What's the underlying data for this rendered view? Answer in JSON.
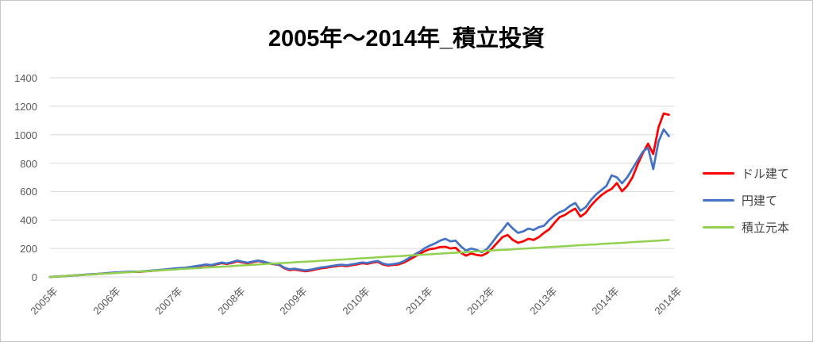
{
  "title": "2005年～2014年_積立投資",
  "legend": {
    "items": [
      {
        "label": "ドル建て",
        "color": "#ff0000"
      },
      {
        "label": "円建て",
        "color": "#4472c4"
      },
      {
        "label": "積立元本",
        "color": "#92d050"
      }
    ]
  },
  "colors": {
    "gridline": "#d9d9d9",
    "axis_text": "#595959",
    "legend_text": "#404040",
    "background": "#ffffff",
    "frame_border": "#c6c6c6"
  },
  "chart_data": {
    "type": "line",
    "title": "2005年～2014年_積立投資",
    "xlabel": "",
    "ylabel": "",
    "grid": "horizontal",
    "legend_position": "right",
    "x_axis": {
      "tick_labels": [
        "2005年",
        "2006年",
        "2007年",
        "2008年",
        "2009年",
        "2010年",
        "2011年",
        "2012年",
        "2013年",
        "2014年",
        "2014年"
      ],
      "months_per_tick": 12,
      "total_months": 120
    },
    "y_axis": {
      "min": 0,
      "max": 1400,
      "tick_interval": 200,
      "ticks": [
        1400,
        1200,
        1000,
        800,
        600,
        400,
        200,
        0
      ]
    },
    "series": [
      {
        "name": "ドル建て",
        "color": "#ff0000",
        "stroke_width": 2.75,
        "values": [
          0,
          2,
          4,
          6,
          9,
          11,
          14,
          16,
          18,
          20,
          23,
          26,
          29,
          31,
          33,
          34,
          36,
          35,
          38,
          41,
          44,
          47,
          50,
          53,
          57,
          60,
          62,
          67,
          73,
          78,
          84,
          79,
          88,
          97,
          91,
          99,
          110,
          102,
          96,
          104,
          112,
          105,
          95,
          90,
          85,
          62,
          48,
          52,
          46,
          40,
          44,
          52,
          60,
          64,
          70,
          76,
          80,
          76,
          82,
          88,
          96,
          92,
          100,
          106,
          88,
          80,
          84,
          88,
          100,
          120,
          140,
          160,
          180,
          195,
          200,
          210,
          212,
          200,
          205,
          170,
          150,
          165,
          155,
          150,
          167,
          200,
          240,
          280,
          295,
          260,
          240,
          250,
          268,
          260,
          280,
          310,
          335,
          380,
          420,
          435,
          460,
          480,
          424,
          450,
          500,
          540,
          574,
          600,
          619,
          660,
          602,
          640,
          700,
          790,
          870,
          937,
          864,
          1050,
          1149,
          1140
        ]
      },
      {
        "name": "円建て",
        "color": "#4472c4",
        "stroke_width": 2.75,
        "values": [
          0,
          2,
          4,
          6,
          9,
          11,
          14,
          16,
          19,
          21,
          24,
          27,
          30,
          32,
          34,
          36,
          38,
          37,
          40,
          43,
          46,
          49,
          52,
          56,
          60,
          63,
          65,
          70,
          76,
          81,
          88,
          83,
          92,
          101,
          95,
          104,
          115,
          107,
          100,
          108,
          115,
          108,
          98,
          92,
          88,
          66,
          54,
          58,
          52,
          46,
          50,
          58,
          66,
          70,
          76,
          82,
          86,
          82,
          88,
          94,
          102,
          98,
          106,
          112,
          94,
          86,
          90,
          96,
          110,
          132,
          155,
          175,
          200,
          220,
          235,
          255,
          268,
          250,
          255,
          215,
          185,
          200,
          190,
          175,
          195,
          240,
          290,
          330,
          379,
          340,
          310,
          320,
          340,
          330,
          350,
          360,
          400,
          430,
          455,
          470,
          500,
          520,
          465,
          490,
          540,
          580,
          610,
          640,
          714,
          700,
          658,
          700,
          760,
          820,
          880,
          909,
          758,
          950,
          1037,
          990
        ]
      },
      {
        "name": "積立元本",
        "color": "#92d050",
        "stroke_width": 2.5,
        "values": [
          0,
          2,
          4,
          7,
          9,
          11,
          13,
          15,
          17,
          20,
          22,
          24,
          26,
          28,
          31,
          33,
          35,
          37,
          39,
          41,
          44,
          46,
          48,
          50,
          52,
          55,
          57,
          59,
          61,
          63,
          66,
          68,
          70,
          72,
          74,
          76,
          79,
          81,
          83,
          85,
          87,
          90,
          92,
          94,
          96,
          98,
          100,
          103,
          105,
          107,
          109,
          111,
          114,
          116,
          118,
          120,
          122,
          124,
          127,
          129,
          131,
          133,
          135,
          138,
          140,
          142,
          144,
          146,
          148,
          151,
          153,
          155,
          157,
          159,
          162,
          164,
          166,
          168,
          170,
          172,
          175,
          177,
          179,
          181,
          184,
          186,
          188,
          190,
          192,
          194,
          197,
          199,
          201,
          203,
          205,
          208,
          210,
          212,
          214,
          216,
          218,
          221,
          223,
          225,
          227,
          229,
          232,
          234,
          236,
          238,
          240,
          242,
          245,
          247,
          249,
          251,
          253,
          255,
          258,
          260
        ]
      }
    ]
  }
}
